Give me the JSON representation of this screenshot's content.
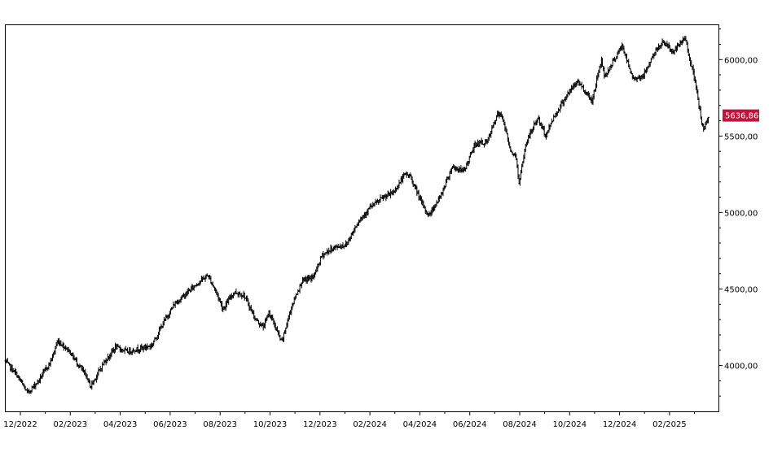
{
  "chart_data": {
    "type": "line",
    "style": "ohlc-bars",
    "y_axis_position": "right",
    "ylim": [
      3700,
      6230
    ],
    "grid": false,
    "colors": {
      "line": "#000000",
      "badge": "#c0143c",
      "frame": "#000000"
    },
    "x_ticks": [
      "12/2022",
      "02/2023",
      "04/2023",
      "06/2023",
      "08/2023",
      "10/2023",
      "12/2023",
      "02/2024",
      "04/2024",
      "06/2024",
      "08/2024",
      "10/2024",
      "12/2024",
      "02/2025"
    ],
    "y_ticks": [
      {
        "value": 6000,
        "label": "6000,00"
      },
      {
        "value": 5500,
        "label": "5500,00"
      },
      {
        "value": 5000,
        "label": "5000,00"
      },
      {
        "value": 4500,
        "label": "4500,00"
      },
      {
        "value": 4000,
        "label": "4000,00"
      }
    ],
    "last_value": 5636.86,
    "last_value_label": "5636,86",
    "x": [
      "2022-12-01",
      "2022-12-15",
      "2022-12-28",
      "2023-01-10",
      "2023-01-25",
      "2023-02-02",
      "2023-02-15",
      "2023-03-09",
      "2023-03-13",
      "2023-03-28",
      "2023-04-12",
      "2023-04-26",
      "2023-05-10",
      "2023-05-25",
      "2023-06-08",
      "2023-06-21",
      "2023-07-05",
      "2023-07-19",
      "2023-07-31",
      "2023-08-10",
      "2023-08-18",
      "2023-08-31",
      "2023-09-12",
      "2023-09-26",
      "2023-10-05",
      "2023-10-12",
      "2023-10-27",
      "2023-11-08",
      "2023-11-20",
      "2023-12-04",
      "2023-12-14",
      "2023-12-28",
      "2024-01-12",
      "2024-01-26",
      "2024-02-09",
      "2024-02-23",
      "2024-03-08",
      "2024-03-22",
      "2024-03-28",
      "2024-04-11",
      "2024-04-19",
      "2024-05-03",
      "2024-05-17",
      "2024-05-31",
      "2024-06-14",
      "2024-06-28",
      "2024-07-10",
      "2024-07-16",
      "2024-07-25",
      "2024-08-02",
      "2024-08-05",
      "2024-08-13",
      "2024-08-27",
      "2024-09-06",
      "2024-09-13",
      "2024-09-30",
      "2024-10-14",
      "2024-10-31",
      "2024-11-11",
      "2024-11-15",
      "2024-12-06",
      "2024-12-18",
      "2024-12-31",
      "2025-01-10",
      "2025-01-23",
      "2025-02-05",
      "2025-02-19",
      "2025-03-03",
      "2025-03-10",
      "2025-03-13",
      "2025-03-19"
    ],
    "values": [
      4030,
      3940,
      3820,
      3900,
      4030,
      4160,
      4100,
      3920,
      3860,
      4010,
      4120,
      4090,
      4110,
      4130,
      4280,
      4400,
      4470,
      4540,
      4590,
      4480,
      4370,
      4480,
      4460,
      4300,
      4250,
      4350,
      4150,
      4390,
      4550,
      4580,
      4720,
      4770,
      4790,
      4940,
      5030,
      5090,
      5130,
      5250,
      5240,
      5060,
      4980,
      5100,
      5300,
      5270,
      5450,
      5460,
      5640,
      5630,
      5420,
      5350,
      5180,
      5450,
      5620,
      5500,
      5600,
      5760,
      5860,
      5730,
      6000,
      5890,
      6090,
      5880,
      5890,
      6010,
      6120,
      6050,
      6140,
      5850,
      5610,
      5530,
      5636.86
    ]
  }
}
